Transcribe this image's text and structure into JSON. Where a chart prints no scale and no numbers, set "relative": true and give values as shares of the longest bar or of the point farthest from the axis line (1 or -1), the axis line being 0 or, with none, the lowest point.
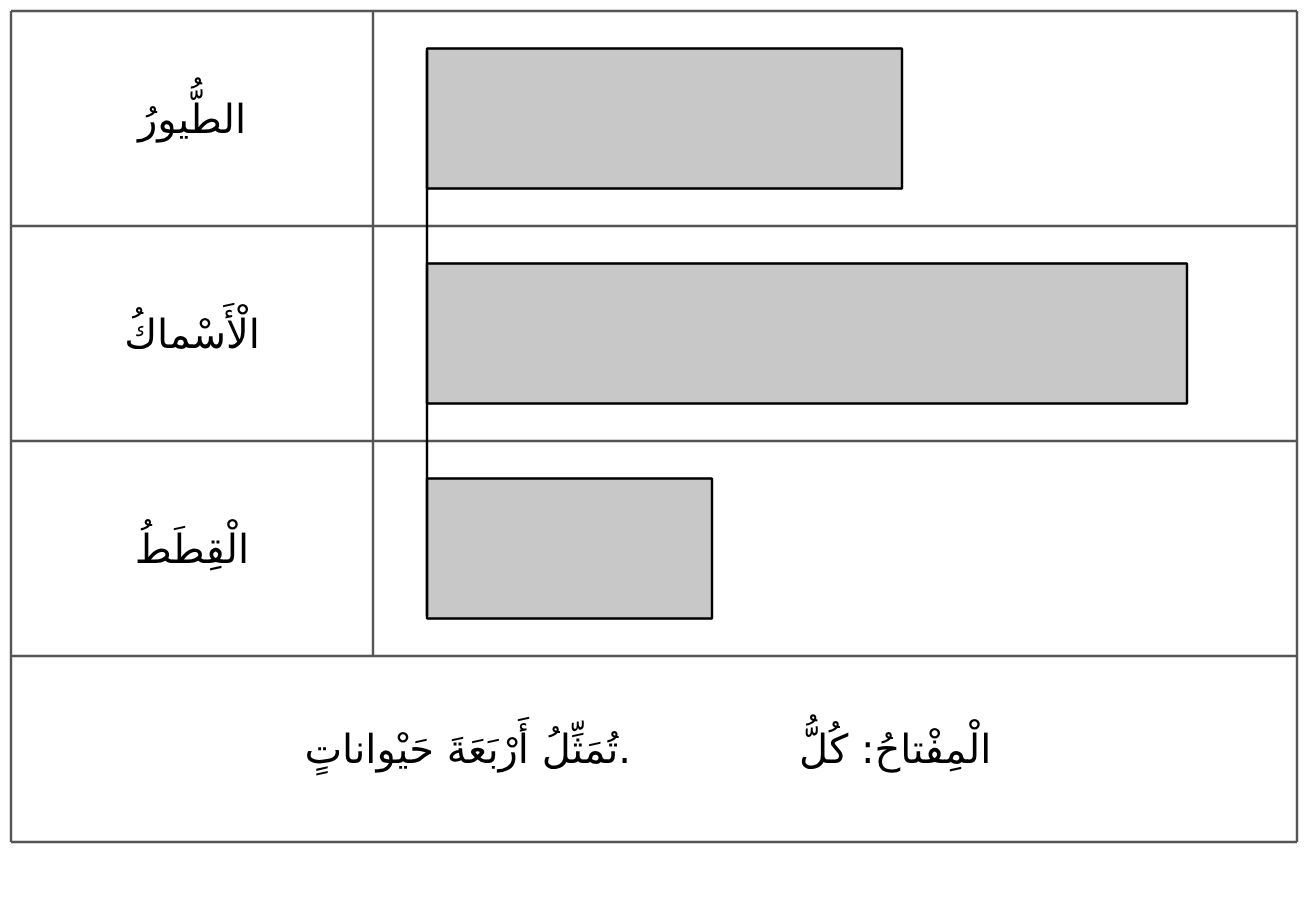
{
  "chart_data": {
    "type": "bar",
    "orientation": "horizontal",
    "relative": true,
    "categories": [
      "الطُّيورُ",
      "الْأَسْماكُ",
      "الْقِطَطُ"
    ],
    "values": [
      0.625,
      1,
      0.375
    ],
    "color": "#c8c8c8",
    "annotations": [
      "الْمِفْتاحُ: كُلُّ",
      "تُمَثِّلُ أَرْبَعَةَ حَيْواناتٍ."
    ]
  }
}
